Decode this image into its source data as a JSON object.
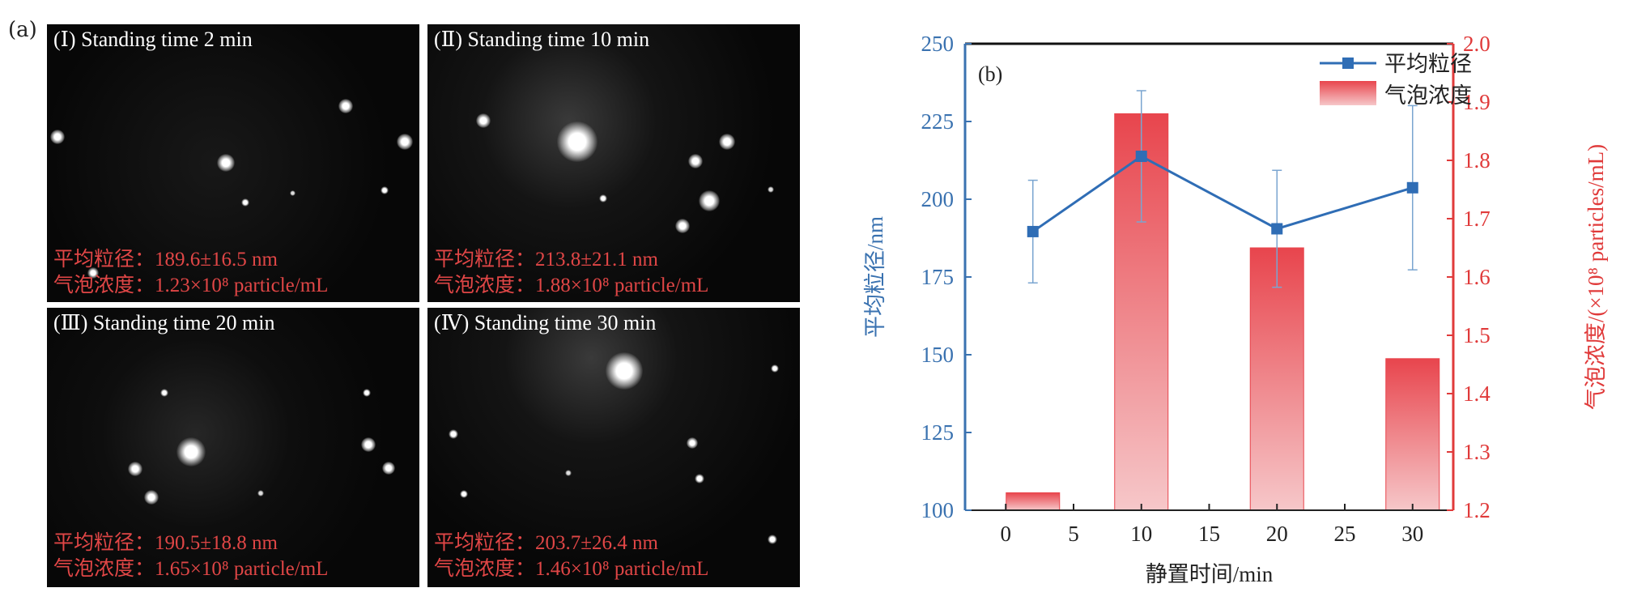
{
  "panel_a_label": "(a)",
  "panels": [
    {
      "title": "(Ⅰ) Standing time 2 min",
      "size_line": "平均粒径：189.6±16.5 nm",
      "conc_line": "气泡浓度：1.23×10⁸ particle/mL"
    },
    {
      "title": "(Ⅱ) Standing time 10 min",
      "size_line": "平均粒径：213.8±21.1 nm",
      "conc_line": "气泡浓度：1.88×10⁸ particle/mL"
    },
    {
      "title": "(Ⅲ) Standing time 20 min",
      "size_line": "平均粒径：190.5±18.8 nm",
      "conc_line": "气泡浓度：1.65×10⁸ particle/mL"
    },
    {
      "title": "(Ⅳ) Standing time 30 min",
      "size_line": "平均粒径：203.7±26.4 nm",
      "conc_line": "气泡浓度：1.46×10⁸ particle/mL"
    }
  ],
  "colors": {
    "left_axis": "#3a72b0",
    "right_axis": "#e03a3a",
    "line": "#2f6db5",
    "bar_top": "#e8454d",
    "bar_bottom": "#f6c7c9",
    "stat_text": "#e04646"
  },
  "chart_data": {
    "type": "bar+line",
    "panel_label": "(b)",
    "xlabel": "静置时间/min",
    "ylabel_left": "平均粒径/nm",
    "ylabel_right": "气泡浓度/(×10⁸ particles/mL)",
    "xlim": [
      -3,
      33
    ],
    "xticks": [
      0,
      5,
      10,
      15,
      20,
      25,
      30
    ],
    "ylim_left": [
      100,
      250
    ],
    "yticks_left": [
      100,
      125,
      150,
      175,
      200,
      225,
      250
    ],
    "ylim_right": [
      1.2,
      2.0
    ],
    "yticks_right": [
      1.2,
      1.3,
      1.4,
      1.5,
      1.6,
      1.7,
      1.8,
      1.9,
      2.0
    ],
    "line_series": {
      "name": "平均粒径",
      "x": [
        2,
        10,
        20,
        30
      ],
      "y": [
        189.6,
        213.8,
        190.5,
        203.7
      ],
      "error": [
        16.5,
        21.1,
        18.8,
        26.4
      ]
    },
    "bar_series": {
      "name": "气泡浓度",
      "x": [
        2,
        10,
        20,
        30
      ],
      "y": [
        1.23,
        1.88,
        1.65,
        1.46
      ]
    },
    "legend": [
      "平均粒径",
      "气泡浓度"
    ],
    "legend_position": "top-right"
  }
}
